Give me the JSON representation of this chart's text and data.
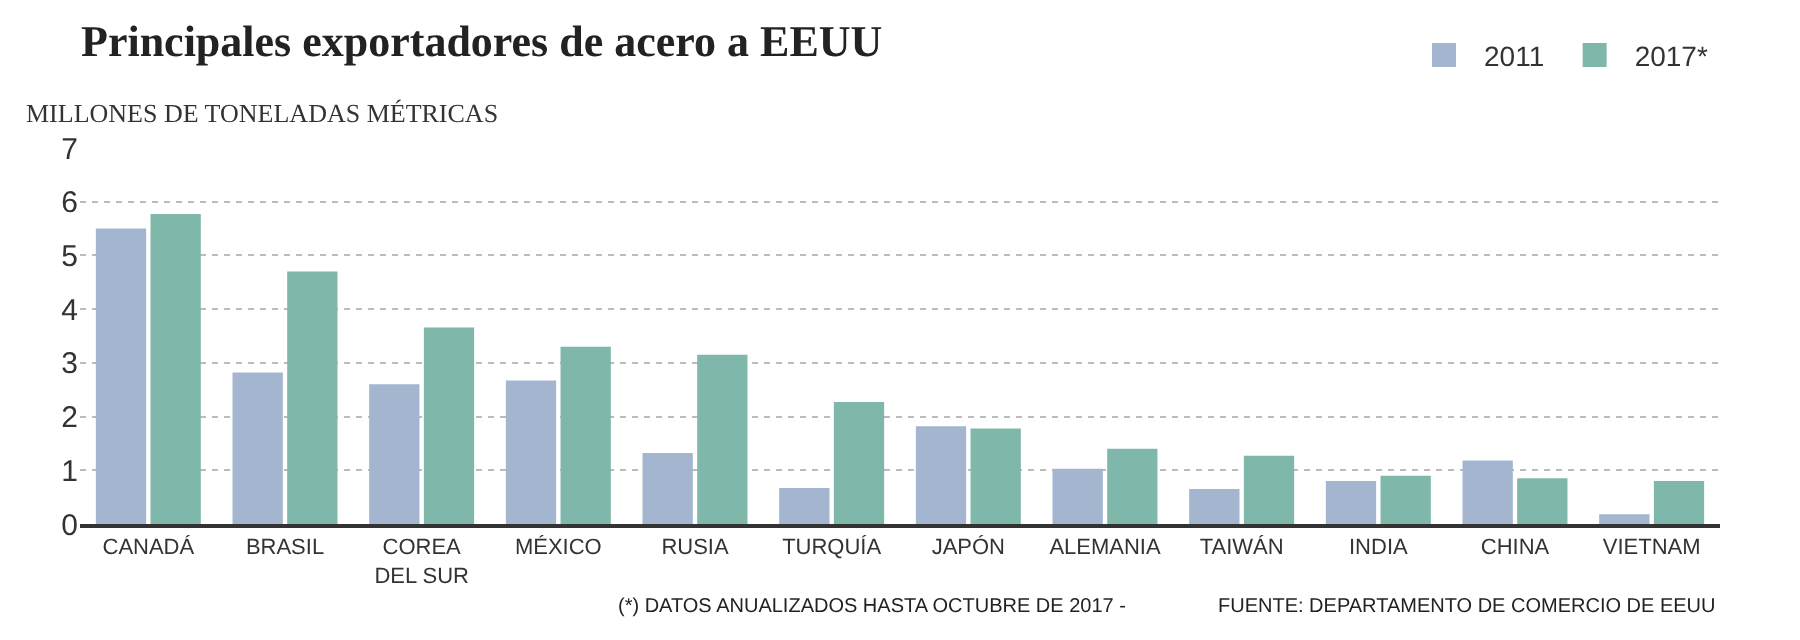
{
  "chart_data": {
    "type": "bar",
    "title": "Principales exportadores de acero a EEUU",
    "ylabel": "MILLONES DE TONELADAS MÉTRICAS",
    "categories": [
      "CANADÁ",
      "BRASIL",
      "COREA DEL SUR",
      "MÉXICO",
      "RUSIA",
      "TURQUÍA",
      "JAPÓN",
      "ALEMANIA",
      "TAIWÁN",
      "INDIA",
      "CHINA",
      "VIETNAM"
    ],
    "series": [
      {
        "name": "2011",
        "color": "#a3b5cf",
        "values": [
          5.5,
          2.82,
          2.6,
          2.67,
          1.32,
          0.67,
          1.82,
          1.03,
          0.65,
          0.8,
          1.18,
          0.18
        ]
      },
      {
        "name": "2017*",
        "color": "#7fb8aa",
        "values": [
          5.77,
          4.7,
          3.66,
          3.3,
          3.15,
          2.27,
          1.78,
          1.4,
          1.27,
          0.9,
          0.85,
          0.8
        ]
      }
    ],
    "ylim": [
      0,
      7
    ],
    "yticks": [
      0,
      1,
      2,
      3,
      4,
      5,
      6,
      7
    ],
    "grid": "y",
    "legend": "top right",
    "annotations": [
      "(*) DATOS ANUALIZADOS HASTA OCTUBRE DE 2017 -",
      "FUENTE: DEPARTAMENTO DE COMERCIO DE EEUU"
    ]
  }
}
